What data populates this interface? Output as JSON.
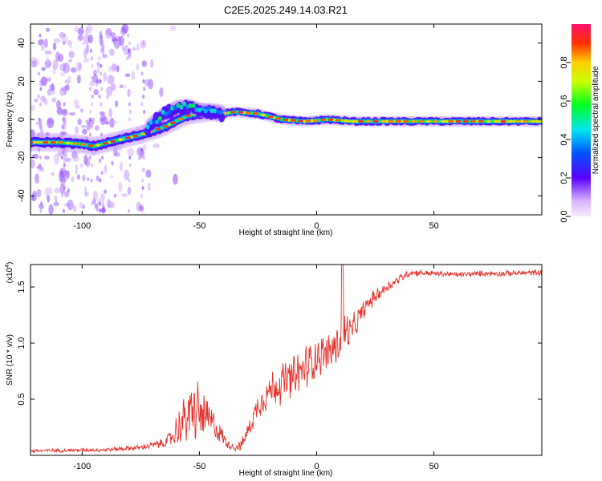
{
  "title": "C2E5.2025.249.14.03.R21",
  "chart_data": [
    {
      "type": "heatmap",
      "name": "spectrogram",
      "xlabel": "Height of straight line (km)",
      "ylabel": "Frequency (Hz)",
      "xlim": [
        -122,
        96
      ],
      "ylim": [
        -50,
        50
      ],
      "xticks": [
        -100,
        -50,
        0,
        50
      ],
      "yticks": [
        -40,
        -20,
        0,
        20,
        40
      ],
      "colorbar": {
        "label": "Normalized spectral amplitude",
        "range": [
          0,
          1
        ],
        "ticks": [
          0.0,
          0.2,
          0.4,
          0.6,
          0.8
        ],
        "tick_labels": [
          "0.0",
          "0.2",
          "0.4",
          "0.6",
          "0.8"
        ]
      },
      "ridge": {
        "x": [
          -122,
          -110,
          -100,
          -95,
          -85,
          -75,
          -65,
          -55,
          -45,
          -40,
          -35,
          -25,
          -15,
          -5,
          5,
          15,
          25,
          35,
          50,
          70,
          96
        ],
        "freq": [
          -12,
          -12,
          -13,
          -14,
          -11,
          -8,
          -4,
          2,
          4,
          3,
          4,
          3,
          0,
          -1,
          0,
          -1,
          -1,
          -1,
          -1,
          -1,
          -1
        ]
      },
      "upper_branch": {
        "x": [
          -72,
          -66,
          -60,
          -55,
          -50,
          -45,
          -40
        ],
        "freq": [
          -4,
          2,
          6,
          7,
          5,
          4,
          3
        ]
      }
    },
    {
      "type": "line",
      "name": "snr",
      "xlabel": "Height of straight line (km)",
      "ylabel": "SNR (10 * v/v)",
      "scale_label": "(x10",
      "scale_exponent": "4",
      "scale_suffix": ")",
      "xlim": [
        -122,
        96
      ],
      "ylim": [
        0,
        1.7
      ],
      "xticks": [
        -100,
        -50,
        0,
        50
      ],
      "yticks": [
        0.5,
        1.0,
        1.5
      ],
      "ytick_labels": [
        "0.5",
        "1.0",
        "1.5"
      ],
      "series_color": "#e8302a",
      "envelope": {
        "x": [
          -122,
          -90,
          -75,
          -65,
          -62,
          -58,
          -55,
          -52,
          -50,
          -48,
          -45,
          -42,
          -38,
          -35,
          -32,
          -28,
          -25,
          -20,
          -15,
          -10,
          -5,
          0,
          5,
          10,
          12,
          15,
          20,
          25,
          30,
          35,
          40,
          50,
          60,
          70,
          80,
          96
        ],
        "mid": [
          0.04,
          0.05,
          0.07,
          0.11,
          0.15,
          0.28,
          0.35,
          0.4,
          0.38,
          0.34,
          0.3,
          0.22,
          0.1,
          0.07,
          0.09,
          0.28,
          0.45,
          0.58,
          0.65,
          0.68,
          0.78,
          0.88,
          0.92,
          1.0,
          1.1,
          1.1,
          1.3,
          1.42,
          1.5,
          1.57,
          1.63,
          1.62,
          1.61,
          1.62,
          1.62,
          1.63
        ],
        "amp": [
          0.02,
          0.02,
          0.03,
          0.05,
          0.1,
          0.22,
          0.3,
          0.35,
          0.32,
          0.25,
          0.2,
          0.12,
          0.05,
          0.04,
          0.06,
          0.1,
          0.14,
          0.2,
          0.22,
          0.25,
          0.25,
          0.22,
          0.2,
          0.25,
          0.25,
          0.16,
          0.1,
          0.08,
          0.06,
          0.05,
          0.04,
          0.03,
          0.03,
          0.03,
          0.03,
          0.03
        ]
      }
    }
  ]
}
